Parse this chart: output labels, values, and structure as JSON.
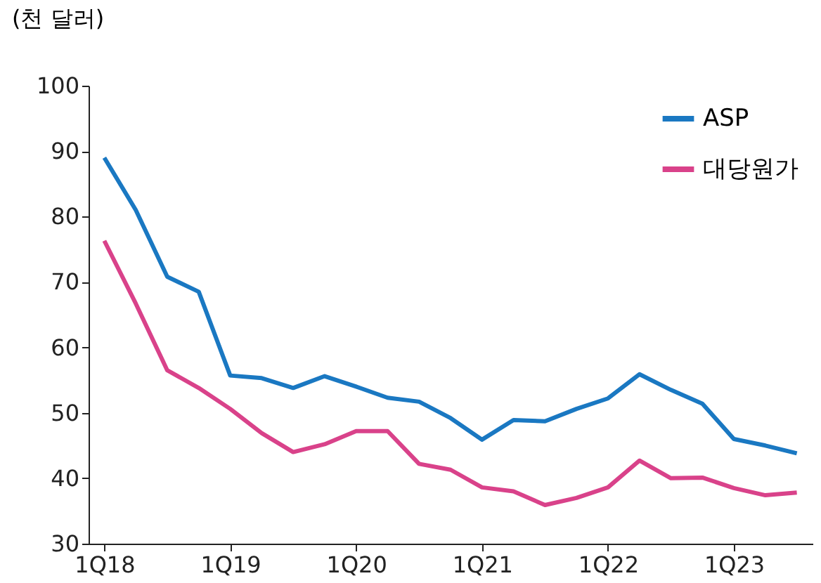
{
  "chart_data": {
    "type": "line",
    "ylabel": "(천 달러)",
    "categories": [
      "1Q18",
      null,
      null,
      null,
      "1Q19",
      null,
      null,
      null,
      "1Q20",
      null,
      null,
      null,
      "1Q21",
      null,
      null,
      null,
      "1Q22",
      null,
      null,
      null,
      "1Q23",
      null,
      null
    ],
    "series": [
      {
        "name": "ASP",
        "color": "#1a78c2",
        "values": [
          89,
          81,
          70.8,
          68.5,
          55.7,
          55.3,
          53.8,
          55.6,
          54,
          52.3,
          51.7,
          49.2,
          45.9,
          48.9,
          48.7,
          50.6,
          52.2,
          55.9,
          53.5,
          51.4,
          46,
          45,
          43.8
        ]
      },
      {
        "name": "대당원가",
        "color": "#d9428a",
        "values": [
          76.3,
          66.7,
          56.5,
          53.8,
          50.6,
          46.9,
          44,
          45.2,
          47.2,
          47.2,
          42.2,
          41.3,
          38.6,
          38,
          35.9,
          37,
          38.6,
          42.7,
          40,
          40.1,
          38.5,
          37.4,
          37.8
        ]
      }
    ],
    "ylim": [
      30,
      100
    ],
    "yticks": [
      30,
      40,
      50,
      60,
      70,
      80,
      90,
      100
    ],
    "grid": false,
    "legend": "top right",
    "marker": "none",
    "line_style": "solid"
  }
}
